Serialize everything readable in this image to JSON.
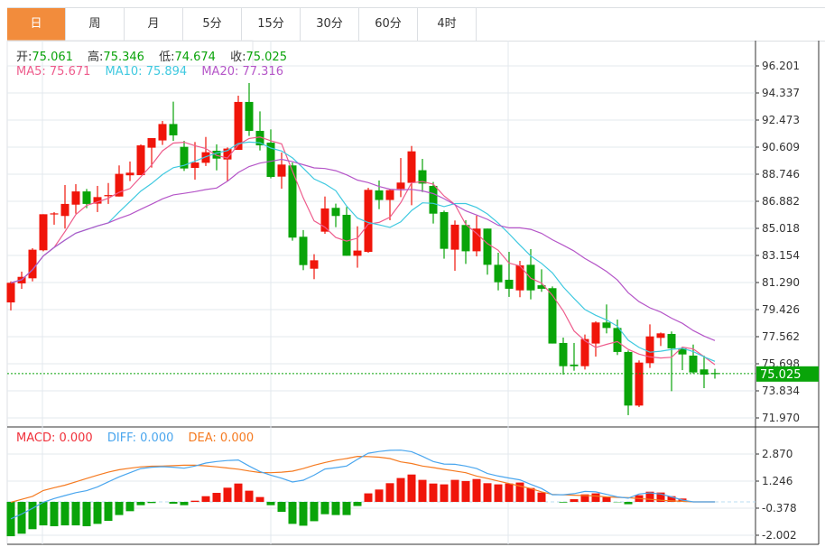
{
  "tabs": [
    {
      "label": "日",
      "active": true
    },
    {
      "label": "周"
    },
    {
      "label": "月"
    },
    {
      "label": "5分"
    },
    {
      "label": "15分"
    },
    {
      "label": "30分"
    },
    {
      "label": "60分"
    },
    {
      "label": "4时"
    }
  ],
  "ohlc_legend": {
    "open_label": "开:",
    "open": "75.061",
    "high_label": "高:",
    "high": "75.346",
    "low_label": "低:",
    "low": "74.674",
    "close_label": "收:",
    "close": "75.025"
  },
  "ma_legend": {
    "ma5": "MA5: 75.671",
    "ma10": "MA10: 75.894",
    "ma20": "MA20: 77.316"
  },
  "macd_legend": {
    "macd": "MACD: 0.000",
    "diff": "DIFF: 0.000",
    "dea": "DEA: 0.000"
  },
  "current_price": "75.025",
  "colors": {
    "up": "#f0150a",
    "down": "#09a409",
    "ma5": "#ee5c8c",
    "ma10": "#3fc9e0",
    "ma20": "#b556c8",
    "diff": "#4aa6ee",
    "dea": "#f57a20",
    "tab_active": "#f28c3c"
  },
  "chart_data": {
    "type": "candlestick",
    "price_ticks": [
      "96.201",
      "94.337",
      "92.473",
      "90.609",
      "88.746",
      "86.882",
      "85.018",
      "83.154",
      "81.290",
      "79.426",
      "77.562",
      "75.698",
      "73.834",
      "71.970"
    ],
    "price_range": [
      71.0,
      97.0
    ],
    "macd_ticks": [
      "2.870",
      "1.246",
      "-0.378",
      "-2.002"
    ],
    "ohlc": [
      [
        79.92,
        81.37,
        79.37,
        81.27
      ],
      [
        81.23,
        82.04,
        80.85,
        81.68
      ],
      [
        81.58,
        83.65,
        81.37,
        83.55
      ],
      [
        83.51,
        85.99,
        83.44,
        85.99
      ],
      [
        86.0,
        86.14,
        85.27,
        86.05
      ],
      [
        85.87,
        88.0,
        85.0,
        86.7
      ],
      [
        86.65,
        88.06,
        86.03,
        87.56
      ],
      [
        87.56,
        87.73,
        86.41,
        86.7
      ],
      [
        86.72,
        87.94,
        86.14,
        87.17
      ],
      [
        87.23,
        88.14,
        86.7,
        87.31
      ],
      [
        87.21,
        89.35,
        87.21,
        88.77
      ],
      [
        88.67,
        89.62,
        88.27,
        88.85
      ],
      [
        88.68,
        90.8,
        88.68,
        90.73
      ],
      [
        90.57,
        91.23,
        89.2,
        91.23
      ],
      [
        91.07,
        92.41,
        90.76,
        92.2
      ],
      [
        92.2,
        93.74,
        91.04,
        91.42
      ],
      [
        90.63,
        91.04,
        88.97,
        89.14
      ],
      [
        89.18,
        90.96,
        88.37,
        89.55
      ],
      [
        89.53,
        91.31,
        89.31,
        90.26
      ],
      [
        90.36,
        90.8,
        89.01,
        89.82
      ],
      [
        89.76,
        90.59,
        88.25,
        90.51
      ],
      [
        90.42,
        94.15,
        90.42,
        93.72
      ],
      [
        93.72,
        95.02,
        91.38,
        91.73
      ],
      [
        91.73,
        93.07,
        90.38,
        90.73
      ],
      [
        90.92,
        91.83,
        88.46,
        88.56
      ],
      [
        88.58,
        90.24,
        87.75,
        89.41
      ],
      [
        89.35,
        89.55,
        84.17,
        84.38
      ],
      [
        84.44,
        84.9,
        82.14,
        82.49
      ],
      [
        82.24,
        83.24,
        81.52,
        82.82
      ],
      [
        84.79,
        87.21,
        84.64,
        86.39
      ],
      [
        86.43,
        86.72,
        85.1,
        85.87
      ],
      [
        85.95,
        86.49,
        83.13,
        83.13
      ],
      [
        83.13,
        85.16,
        82.31,
        83.49
      ],
      [
        83.4,
        87.81,
        83.34,
        87.67
      ],
      [
        87.63,
        88.31,
        86.34,
        86.97
      ],
      [
        86.97,
        87.73,
        85.58,
        87.65
      ],
      [
        87.73,
        89.86,
        87.17,
        88.17
      ],
      [
        88.15,
        90.69,
        86.61,
        90.32
      ],
      [
        89.02,
        89.8,
        87.52,
        88.1
      ],
      [
        87.94,
        88.21,
        85.35,
        86.03
      ],
      [
        86.14,
        86.24,
        82.93,
        83.61
      ],
      [
        83.55,
        85.56,
        82.1,
        85.27
      ],
      [
        85.25,
        85.58,
        82.57,
        83.44
      ],
      [
        83.44,
        85.89,
        83.09,
        85.0
      ],
      [
        85.0,
        85.0,
        81.83,
        82.51
      ],
      [
        82.51,
        83.34,
        80.75,
        81.31
      ],
      [
        81.48,
        83.4,
        80.3,
        80.86
      ],
      [
        80.75,
        82.78,
        80.28,
        82.47
      ],
      [
        82.51,
        83.59,
        80.13,
        80.75
      ],
      [
        81.1,
        82.2,
        80.65,
        80.86
      ],
      [
        80.9,
        81.02,
        77.09,
        77.09
      ],
      [
        77.13,
        77.5,
        74.95,
        75.53
      ],
      [
        75.64,
        77.13,
        75.22,
        75.53
      ],
      [
        75.53,
        77.71,
        75.3,
        77.4
      ],
      [
        77.09,
        78.62,
        76.19,
        78.54
      ],
      [
        78.54,
        79.78,
        77.79,
        78.16
      ],
      [
        78.16,
        78.74,
        76.3,
        76.51
      ],
      [
        76.51,
        76.61,
        72.16,
        72.82
      ],
      [
        72.82,
        75.93,
        72.72,
        75.78
      ],
      [
        75.74,
        78.41,
        75.41,
        77.58
      ],
      [
        77.48,
        77.85,
        76.92,
        77.79
      ],
      [
        77.75,
        77.92,
        73.81,
        76.76
      ],
      [
        76.76,
        76.82,
        75.26,
        76.34
      ],
      [
        76.26,
        77.02,
        75.02,
        75.1
      ],
      [
        75.31,
        76.26,
        74.02,
        74.95
      ],
      [
        75.061,
        75.346,
        74.674,
        75.025
      ]
    ],
    "macd_hist": [
      -2.06,
      -1.91,
      -1.64,
      -1.41,
      -1.46,
      -1.41,
      -1.41,
      -1.46,
      -1.32,
      -1.14,
      -0.79,
      -0.56,
      -0.2,
      -0.07,
      0.0,
      -0.11,
      -0.2,
      0.07,
      0.34,
      0.54,
      0.85,
      1.1,
      0.67,
      0.29,
      -0.2,
      -0.6,
      -1.32,
      -1.43,
      -1.16,
      -0.74,
      -0.79,
      -0.79,
      -0.25,
      0.51,
      0.74,
      1.12,
      1.43,
      1.64,
      1.32,
      1.1,
      1.05,
      1.32,
      1.25,
      1.37,
      1.12,
      1.05,
      1.1,
      1.16,
      0.83,
      0.56,
      0.0,
      -0.04,
      0.16,
      0.45,
      0.51,
      0.29,
      -0.02,
      -0.14,
      0.4,
      0.61,
      0.56,
      0.34,
      0.2,
      0,
      0,
      0
    ],
    "diff": [
      -1.02,
      -0.73,
      -0.39,
      -0.02,
      0.2,
      0.38,
      0.55,
      0.67,
      0.9,
      1.2,
      1.5,
      1.75,
      2.0,
      2.08,
      2.11,
      2.08,
      2.02,
      2.15,
      2.33,
      2.42,
      2.48,
      2.51,
      2.15,
      1.82,
      1.6,
      1.42,
      1.19,
      1.3,
      1.6,
      1.97,
      2.05,
      2.15,
      2.55,
      2.92,
      3.02,
      3.09,
      3.1,
      3.01,
      2.73,
      2.42,
      2.27,
      2.25,
      2.15,
      2.0,
      1.7,
      1.55,
      1.43,
      1.32,
      1.05,
      0.8,
      0.43,
      0.43,
      0.49,
      0.63,
      0.6,
      0.45,
      0.3,
      0.22,
      0.47,
      0.54,
      0.47,
      0.3,
      0.11,
      0,
      0,
      0
    ],
    "dea": [
      -0.02,
      0.15,
      0.33,
      0.68,
      0.85,
      1.0,
      1.2,
      1.4,
      1.6,
      1.78,
      1.93,
      2.02,
      2.1,
      2.14,
      2.15,
      2.17,
      2.2,
      2.2,
      2.16,
      2.1,
      2.03,
      1.96,
      1.85,
      1.76,
      1.75,
      1.78,
      1.84,
      2.0,
      2.2,
      2.36,
      2.5,
      2.6,
      2.73,
      2.72,
      2.68,
      2.6,
      2.4,
      2.3,
      2.15,
      2.06,
      1.95,
      1.85,
      1.75,
      1.55,
      1.4,
      1.25,
      1.1,
      0.95,
      0.8,
      0.6,
      0.45,
      0.42,
      0.4,
      0.38,
      0.35,
      0.3,
      0.27,
      0.25,
      0.2,
      0.15,
      0.1,
      0.06,
      0.03,
      0,
      0,
      0
    ],
    "ma_periods": [
      5,
      10,
      20
    ]
  }
}
